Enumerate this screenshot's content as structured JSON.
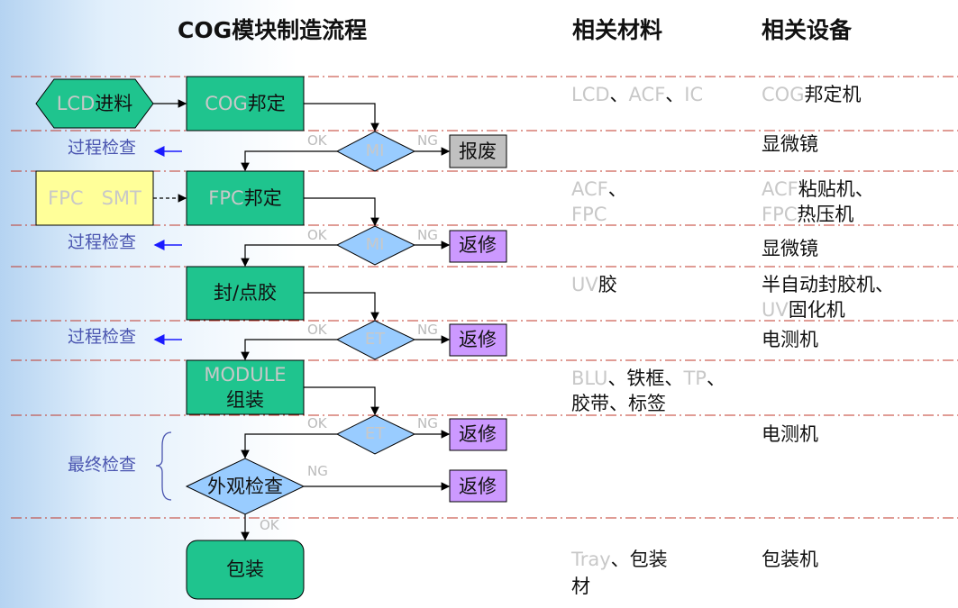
{
  "title": "COG模块制造流程",
  "headers": {
    "materials": "相关材料",
    "equipment": "相关设备"
  },
  "nodes": {
    "lcd_in": "LCD进料",
    "cog_bond": "COG邦定",
    "mi1": "MI",
    "scrap": "报废",
    "fpc_smt": "FPC   SMT",
    "fpc_bond": "FPC邦定",
    "mi2": "MI",
    "rework1": "返修",
    "seal": "封/点胶",
    "et1": "ET",
    "rework2": "返修",
    "module": "MODULE组装",
    "et2": "ET",
    "rework3": "返修",
    "visual": "外观检查",
    "rework4": "返修",
    "pack": "包装"
  },
  "flow_labels": {
    "ok": "OK",
    "ng": "NG"
  },
  "side_labels": {
    "process_check": "过程检查",
    "final_check": "最终检查"
  },
  "materials": [
    "LCD、ACF、IC",
    "ACF、",
    "FPC",
    "UV胶",
    "BLU、铁框、TP、",
    "胶带、标签",
    "Tray、包装",
    "材"
  ],
  "equipment": [
    "COG邦定机",
    "显微镜",
    "ACF粘贴机、",
    "FPC热压机",
    "显微镜",
    "半自动封胶机、",
    "UV固化机",
    "电测机",
    "电测机",
    "包装机"
  ],
  "colors": {
    "process": "#1fc48e",
    "decision": "#99ccff",
    "scrap": "#c0c0c0",
    "rework": "#cc99ff",
    "external": "#ffff99",
    "separator": "#c0392b",
    "check_arrow": "#1a1aff"
  }
}
